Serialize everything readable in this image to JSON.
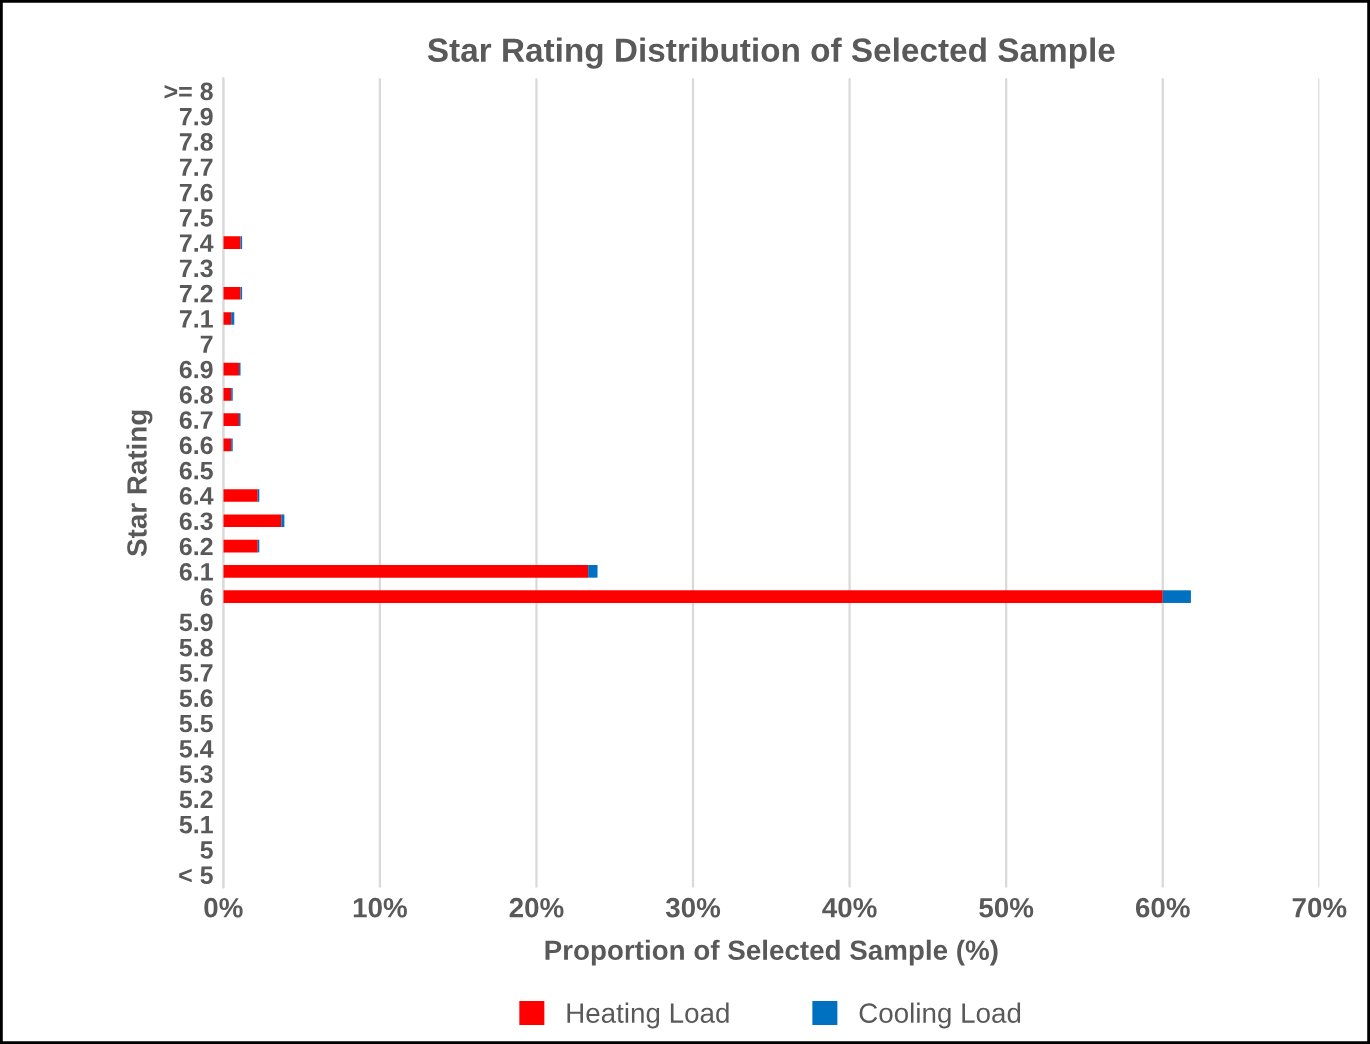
{
  "chart_data": {
    "type": "bar",
    "orientation": "horizontal",
    "stacked": true,
    "title": "Star Rating Distribution of Selected Sample",
    "xlabel": "Proportion of Selected Sample (%)",
    "ylabel": "Star Rating",
    "categories": [
      ">= 8",
      "7.9",
      "7.8",
      "7.7",
      "7.6",
      "7.5",
      "7.4",
      "7.3",
      "7.2",
      "7.1",
      "7",
      "6.9",
      "6.8",
      "6.7",
      "6.6",
      "6.5",
      "6.4",
      "6.3",
      "6.2",
      "6.1",
      "6",
      "5.9",
      "5.8",
      "5.7",
      "5.6",
      "5.5",
      "5.4",
      "5.3",
      "5.2",
      "5.1",
      "5",
      "< 5"
    ],
    "series": [
      {
        "name": "Heating Load",
        "color": "#ff0000",
        "values": [
          0,
          0,
          0,
          0,
          0,
          0,
          1.1,
          0,
          1.1,
          0.5,
          0,
          1.0,
          0.5,
          1.0,
          0.5,
          0,
          2.2,
          3.7,
          2.2,
          23.3,
          60,
          0,
          0,
          0,
          0,
          0,
          0,
          0,
          0,
          0,
          0,
          0
        ]
      },
      {
        "name": "Cooling Load",
        "color": "#0070c0",
        "values": [
          0,
          0,
          0,
          0,
          0,
          0,
          0.1,
          0,
          0.1,
          0.2,
          0,
          0.1,
          0.1,
          0.1,
          0.1,
          0,
          0.1,
          0.2,
          0.1,
          0.6,
          1.8,
          0,
          0,
          0,
          0,
          0,
          0,
          0,
          0,
          0,
          0,
          0
        ]
      }
    ],
    "xlim": [
      0,
      70
    ],
    "xticks": [
      {
        "value": 0,
        "label": "0%"
      },
      {
        "value": 10,
        "label": "10%"
      },
      {
        "value": 20,
        "label": "20%"
      },
      {
        "value": 30,
        "label": "30%"
      },
      {
        "value": 40,
        "label": "40%"
      },
      {
        "value": 50,
        "label": "50%"
      },
      {
        "value": 60,
        "label": "60%"
      },
      {
        "value": 70,
        "label": "70%"
      }
    ],
    "grid": "x",
    "legend": "bottom"
  }
}
